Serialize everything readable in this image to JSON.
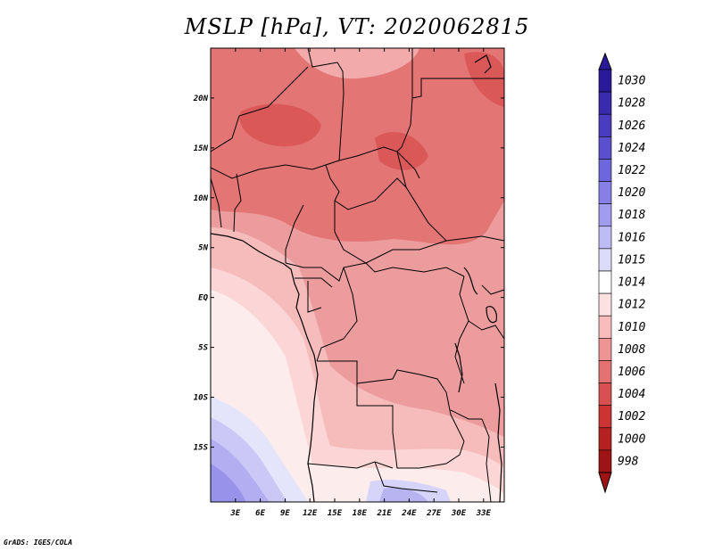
{
  "title": "MSLP [hPa], VT: 2020062815",
  "footer": "GrADS: IGES/COLA",
  "map": {
    "lon_range": [
      0,
      35.5
    ],
    "lat_range": [
      -20.5,
      25
    ],
    "lon_ticks": [
      {
        "value": 3,
        "label": "3E"
      },
      {
        "value": 6,
        "label": "6E"
      },
      {
        "value": 9,
        "label": "9E"
      },
      {
        "value": 12,
        "label": "12E"
      },
      {
        "value": 15,
        "label": "15E"
      },
      {
        "value": 18,
        "label": "18E"
      },
      {
        "value": 21,
        "label": "21E"
      },
      {
        "value": 24,
        "label": "24E"
      },
      {
        "value": 27,
        "label": "27E"
      },
      {
        "value": 30,
        "label": "30E"
      },
      {
        "value": 33,
        "label": "33E"
      }
    ],
    "lat_ticks": [
      {
        "value": 20,
        "label": "20N"
      },
      {
        "value": 15,
        "label": "15N"
      },
      {
        "value": 10,
        "label": "10N"
      },
      {
        "value": 5,
        "label": "5N"
      },
      {
        "value": 0,
        "label": "EQ"
      },
      {
        "value": -5,
        "label": "5S"
      },
      {
        "value": -10,
        "label": "10S"
      },
      {
        "value": -15,
        "label": "15S"
      }
    ]
  },
  "colorbar": {
    "levels": [
      "1030",
      "1028",
      "1026",
      "1024",
      "1022",
      "1020",
      "1018",
      "1016",
      "1015",
      "1014",
      "1012",
      "1010",
      "1008",
      "1006",
      "1004",
      "1002",
      "1000",
      "998"
    ],
    "colors": [
      "#2a1a9a",
      "#3a2aae",
      "#4a3cc0",
      "#5a50cf",
      "#6e66dc",
      "#8680e6",
      "#a09cee",
      "#bebcf4",
      "#dcdcfa",
      "#ffffff",
      "#fde0e0",
      "#f8bcbc",
      "#ef9494",
      "#e47272",
      "#d95050",
      "#cc3434",
      "#b52020",
      "#9e1313"
    ]
  }
}
